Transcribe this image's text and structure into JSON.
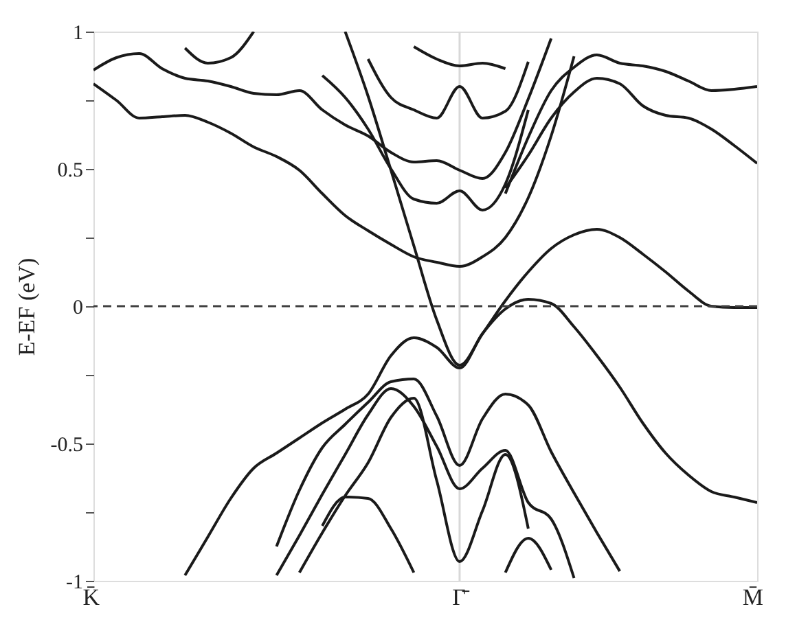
{
  "chart_data": {
    "type": "line",
    "ylabel": "E-EF (eV)",
    "categories": [
      "K̄",
      null,
      null,
      null,
      null,
      null,
      null,
      null,
      null,
      null,
      null,
      null,
      null,
      null,
      null,
      null,
      "Γ̄",
      null,
      null,
      null,
      null,
      null,
      null,
      null,
      null,
      null,
      null,
      null,
      null,
      "M̄"
    ],
    "ylim": [
      -1,
      1
    ],
    "yticks": [
      -1,
      {
        "value": -0.75,
        "label": null
      },
      -0.5,
      {
        "value": -0.25,
        "label": null
      },
      0,
      {
        "value": 0.25,
        "label": null
      },
      0.5,
      {
        "value": 0.75,
        "label": null
      },
      1
    ],
    "grid": false,
    "legend": false,
    "marker": "none",
    "line_style": "solid",
    "ref_lines": [
      {
        "axis": "y",
        "value": 0,
        "line_style": "dashed",
        "color": "#404040"
      },
      {
        "axis": "x",
        "value": "Γ̄",
        "line_style": "solid",
        "color": "#d8d8d8"
      }
    ],
    "series": [
      {
        "color": "#1a1a1a",
        "values": [
          0.81,
          0.75,
          0.685,
          0.69,
          0.695,
          0.67,
          0.63,
          0.58,
          0.545,
          0.495,
          0.41,
          0.33,
          0.275,
          0.225,
          0.18,
          0.16,
          0.145,
          0.18,
          0.25,
          0.395,
          0.62,
          0.91,
          null,
          null,
          null,
          null,
          null,
          null,
          null,
          null
        ]
      },
      {
        "color": "#1a1a1a",
        "values": [
          0.86,
          0.905,
          0.92,
          0.865,
          0.83,
          0.82,
          0.8,
          0.775,
          0.77,
          0.785,
          0.715,
          0.66,
          0.62,
          0.56,
          0.525,
          0.53,
          0.495,
          0.465,
          0.56,
          0.755,
          0.975,
          null,
          null,
          null,
          null,
          null,
          null,
          null,
          null,
          null
        ]
      },
      {
        "color": "#1a1a1a",
        "values": [
          null,
          null,
          null,
          null,
          0.94,
          0.885,
          0.905,
          1.0,
          null,
          null,
          null,
          null,
          null,
          null,
          null,
          null,
          null,
          null,
          null,
          null,
          null,
          null,
          null,
          null,
          null,
          null,
          null,
          null,
          null,
          null
        ]
      },
      {
        "color": "#1a1a1a",
        "values": [
          null,
          null,
          null,
          null,
          null,
          null,
          null,
          null,
          null,
          null,
          0.84,
          0.76,
          0.645,
          0.5,
          0.39,
          0.375,
          0.42,
          0.35,
          0.445,
          0.715,
          null,
          null,
          null,
          null,
          null,
          null,
          null,
          null,
          null,
          null
        ]
      },
      {
        "color": "#1a1a1a",
        "values": [
          null,
          null,
          null,
          null,
          null,
          null,
          null,
          null,
          null,
          null,
          null,
          null,
          0.9,
          0.76,
          0.715,
          0.685,
          0.8,
          0.685,
          0.71,
          0.89,
          null,
          null,
          null,
          null,
          null,
          null,
          null,
          null,
          null,
          null
        ]
      },
      {
        "color": "#1a1a1a",
        "values": [
          null,
          null,
          null,
          null,
          null,
          null,
          null,
          null,
          null,
          null,
          null,
          null,
          null,
          null,
          0.945,
          0.9,
          0.875,
          0.885,
          0.865,
          null,
          null,
          null,
          null,
          null,
          null,
          null,
          null,
          null,
          null,
          null
        ]
      },
      {
        "color": "#1a1a1a",
        "values": [
          null,
          null,
          null,
          null,
          null,
          null,
          null,
          null,
          null,
          null,
          null,
          null,
          null,
          null,
          null,
          null,
          null,
          null,
          0.41,
          0.615,
          0.785,
          0.87,
          0.915,
          0.885,
          0.875,
          0.855,
          0.82,
          0.785,
          0.79,
          0.8
        ]
      },
      {
        "color": "#1a1a1a",
        "values": [
          null,
          null,
          null,
          null,
          null,
          null,
          null,
          null,
          null,
          null,
          null,
          null,
          null,
          null,
          null,
          null,
          null,
          null,
          0.43,
          0.55,
          0.685,
          0.78,
          0.83,
          0.81,
          0.73,
          0.695,
          0.685,
          0.645,
          0.585,
          0.52
        ]
      },
      {
        "color": "#1a1a1a",
        "values": [
          null,
          null,
          null,
          null,
          null,
          null,
          null,
          null,
          null,
          null,
          null,
          1.0,
          0.765,
          0.495,
          0.22,
          -0.05,
          -0.215,
          -0.1,
          0.02,
          0.125,
          0.21,
          0.26,
          0.28,
          0.25,
          0.19,
          0.125,
          0.055,
          0.0,
          -0.005,
          -0.005
        ]
      },
      {
        "color": "#1a1a1a",
        "values": [
          null,
          null,
          null,
          null,
          -0.98,
          -0.84,
          -0.7,
          -0.59,
          -0.535,
          -0.48,
          -0.425,
          -0.375,
          -0.32,
          -0.18,
          -0.115,
          -0.15,
          -0.225,
          -0.1,
          -0.01,
          0.025,
          0.01,
          -0.075,
          -0.18,
          -0.295,
          -0.425,
          -0.535,
          -0.615,
          -0.675,
          -0.695,
          -0.715
        ]
      },
      {
        "color": "#1a1a1a",
        "values": [
          null,
          null,
          null,
          null,
          null,
          null,
          null,
          null,
          -0.875,
          -0.67,
          -0.515,
          -0.43,
          -0.35,
          -0.275,
          -0.265,
          -0.4,
          -0.58,
          -0.41,
          -0.32,
          -0.36,
          -0.53,
          -0.68,
          -0.825,
          -0.965,
          null,
          null,
          null,
          null,
          null,
          null
        ]
      },
      {
        "color": "#1a1a1a",
        "values": [
          null,
          null,
          null,
          null,
          null,
          null,
          null,
          null,
          -0.98,
          -0.835,
          -0.685,
          -0.54,
          -0.395,
          -0.3,
          -0.365,
          -0.51,
          -0.665,
          -0.59,
          -0.525,
          -0.715,
          -0.775,
          -0.99,
          null,
          null,
          null,
          null,
          null,
          null,
          null,
          null
        ]
      },
      {
        "color": "#1a1a1a",
        "values": [
          null,
          null,
          null,
          null,
          null,
          null,
          null,
          null,
          null,
          -0.97,
          -0.825,
          -0.69,
          -0.57,
          -0.405,
          -0.335,
          -0.635,
          -0.93,
          -0.745,
          -0.54,
          -0.81,
          null,
          null,
          null,
          null,
          null,
          null,
          null,
          null,
          null,
          null
        ]
      },
      {
        "color": "#1a1a1a",
        "values": [
          null,
          null,
          null,
          null,
          null,
          null,
          null,
          null,
          null,
          null,
          -0.8,
          -0.695,
          -0.7,
          -0.81,
          -0.97,
          null,
          null,
          null,
          null,
          null,
          null,
          null,
          null,
          null,
          null,
          null,
          null,
          null,
          null,
          null
        ]
      },
      {
        "color": "#1a1a1a",
        "values": [
          null,
          null,
          null,
          null,
          null,
          null,
          null,
          null,
          null,
          null,
          null,
          null,
          null,
          null,
          null,
          null,
          null,
          null,
          -0.97,
          -0.845,
          -0.96,
          null,
          null,
          null,
          null,
          null,
          null,
          null,
          null,
          null
        ]
      }
    ]
  }
}
